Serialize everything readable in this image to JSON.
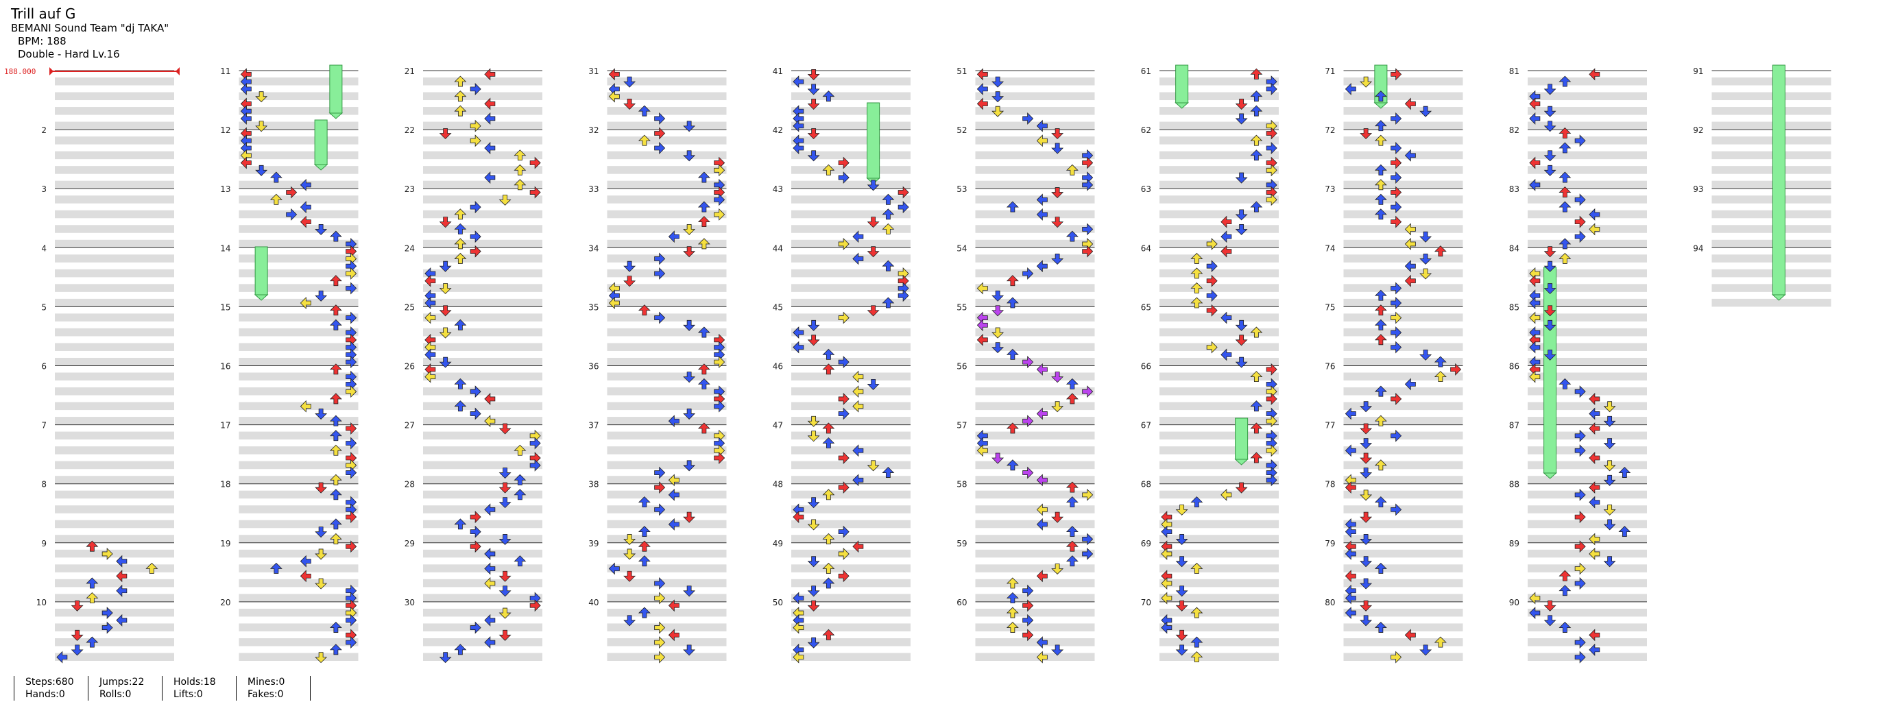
{
  "song": {
    "title": "Trill auf G",
    "artist": "BEMANI Sound Team \"dj TAKA\"",
    "bpm": "BPM: 188",
    "difficulty": "Double - Hard Lv.16"
  },
  "bpm_marker": "188.000",
  "measure_numbers": [
    "",
    "2",
    "3",
    "4",
    "5",
    "6",
    "7",
    "8",
    "9",
    "10",
    "11",
    "12",
    "13",
    "14",
    "15",
    "16",
    "17",
    "18",
    "19",
    "20",
    "21",
    "22",
    "23",
    "24",
    "25",
    "26",
    "27",
    "28",
    "29",
    "30",
    "31",
    "32",
    "33",
    "34",
    "35",
    "36",
    "37",
    "38",
    "39",
    "40",
    "41",
    "42",
    "43",
    "44",
    "45",
    "46",
    "47",
    "48",
    "49",
    "50",
    "51",
    "52",
    "53",
    "54",
    "55",
    "56",
    "57",
    "58",
    "59",
    "60",
    "61",
    "62",
    "63",
    "64",
    "65",
    "66",
    "67",
    "68",
    "69",
    "70",
    "71",
    "72",
    "73",
    "74",
    "75",
    "76",
    "77",
    "78",
    "79",
    "80",
    "81",
    "82",
    "83",
    "84",
    "85",
    "86",
    "87",
    "88",
    "89",
    "90",
    "91",
    "92",
    "93",
    "94"
  ],
  "colors": {
    "red": "#ee3333",
    "blue": "#3355ee",
    "yellow": "#f5e040",
    "purple": "#bb44ee",
    "hold": "#88ee99",
    "band": "#dddddd"
  },
  "stats": {
    "steps": "Steps:680",
    "hands": "Hands:0",
    "jumps": "Jumps:22",
    "rolls": "Rolls:0",
    "holds": "Holds:18",
    "lifts": "Lifts:0",
    "mines": "Mines:0",
    "fakes": "Fakes:0"
  }
}
